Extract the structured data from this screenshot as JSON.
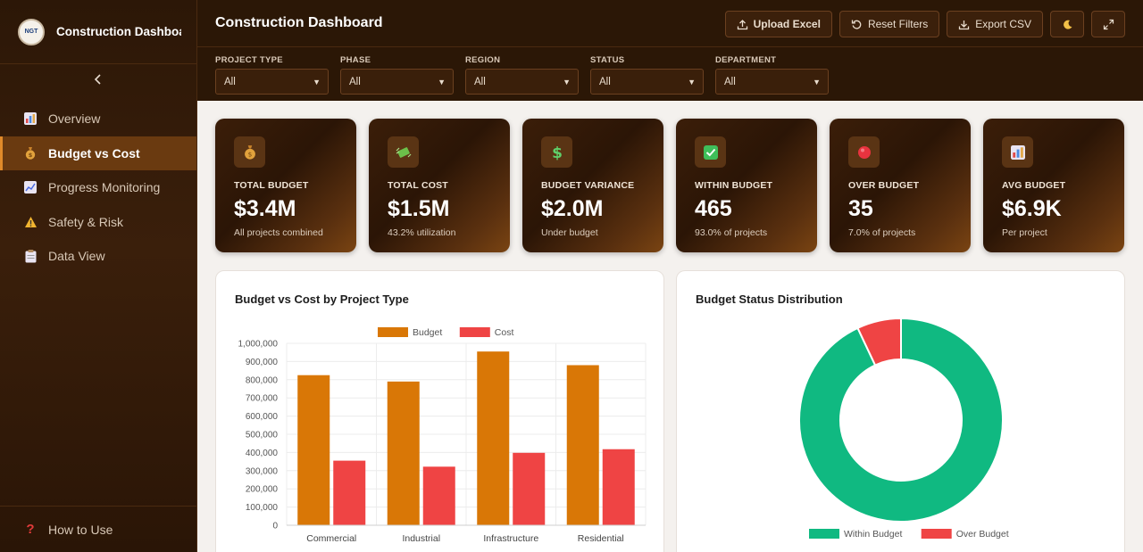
{
  "app": {
    "title": "Construction Dashboar",
    "logo_text": "NGT"
  },
  "sidebar": {
    "collapse_icon": "chevron-left-icon",
    "items": [
      {
        "label": "Overview",
        "icon": "bar-chart-icon",
        "active": false
      },
      {
        "label": "Budget vs Cost",
        "icon": "money-bag-icon",
        "active": true
      },
      {
        "label": "Progress Monitoring",
        "icon": "line-chart-icon",
        "active": false
      },
      {
        "label": "Safety & Risk",
        "icon": "warning-icon",
        "active": false
      },
      {
        "label": "Data View",
        "icon": "clipboard-icon",
        "active": false
      }
    ],
    "help_label": "How to Use"
  },
  "header": {
    "title": "Construction Dashboard",
    "upload_label": "Upload Excel",
    "reset_label": "Reset Filters",
    "export_label": "Export CSV"
  },
  "filters": [
    {
      "label": "PROJECT TYPE",
      "value": "All"
    },
    {
      "label": "PHASE",
      "value": "All"
    },
    {
      "label": "REGION",
      "value": "All"
    },
    {
      "label": "STATUS",
      "value": "All"
    },
    {
      "label": "DEPARTMENT",
      "value": "All"
    }
  ],
  "kpis": [
    {
      "label": "TOTAL BUDGET",
      "value": "$3.4M",
      "sub": "All projects combined",
      "icon": "money-bag-icon"
    },
    {
      "label": "TOTAL COST",
      "value": "$1.5M",
      "sub": "43.2% utilization",
      "icon": "flying-money-icon"
    },
    {
      "label": "BUDGET VARIANCE",
      "value": "$2.0M",
      "sub": "Under budget",
      "icon": "dollar-icon"
    },
    {
      "label": "WITHIN BUDGET",
      "value": "465",
      "sub": "93.0% of projects",
      "icon": "check-icon"
    },
    {
      "label": "OVER BUDGET",
      "value": "35",
      "sub": "7.0% of projects",
      "icon": "red-circle-icon"
    },
    {
      "label": "AVG BUDGET",
      "value": "$6.9K",
      "sub": "Per project",
      "icon": "bar-chart-icon"
    }
  ],
  "colors": {
    "budget": "#d97706",
    "cost": "#ef4444",
    "within": "#10b981",
    "over": "#ef4444"
  },
  "panels": {
    "bar_title": "Budget vs Cost by Project Type",
    "donut_title": "Budget Status Distribution"
  },
  "chart_data": [
    {
      "type": "bar",
      "title": "Budget vs Cost by Project Type",
      "categories": [
        "Commercial",
        "Industrial",
        "Infrastructure",
        "Residential"
      ],
      "series": [
        {
          "name": "Budget",
          "values": [
            825000,
            790000,
            955000,
            880000
          ]
        },
        {
          "name": "Cost",
          "values": [
            355000,
            322000,
            398000,
            418000
          ]
        }
      ],
      "ylim": [
        0,
        1000000
      ],
      "yticks": [
        "0",
        "100,000",
        "200,000",
        "300,000",
        "400,000",
        "500,000",
        "600,000",
        "700,000",
        "800,000",
        "900,000",
        "1,000,000"
      ],
      "legend": "top",
      "grid": true
    },
    {
      "type": "pie",
      "title": "Budget Status Distribution",
      "labels": [
        "Within Budget",
        "Over Budget"
      ],
      "values": [
        465,
        35
      ],
      "legend": "bottom"
    }
  ]
}
